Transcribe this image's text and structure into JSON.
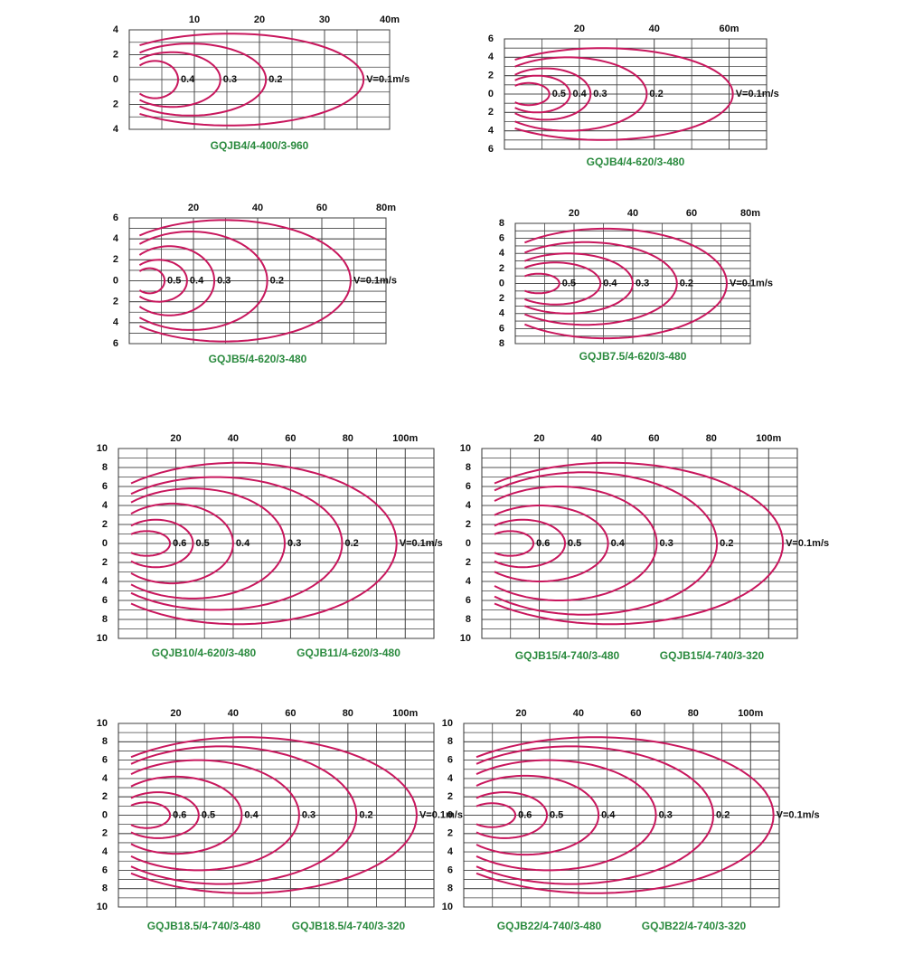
{
  "chart_data": [
    {
      "type": "contour",
      "captions": [
        "GQJB4/4-400/3-960"
      ],
      "xlim": [
        0,
        40
      ],
      "ylim": [
        -4,
        4
      ],
      "xticks": [
        10,
        20,
        30,
        {
          "value": 40,
          "label": "40m"
        }
      ],
      "yticks": [
        4,
        2,
        0,
        {
          "value": -2,
          "label": "2"
        },
        {
          "value": -4,
          "label": "4"
        }
      ],
      "color": "#c8175d",
      "series": [
        {
          "name": "0.4",
          "reach": 7.5,
          "half_width": 1.5
        },
        {
          "name": "0.3",
          "reach": 14,
          "half_width": 2.2
        },
        {
          "name": "0.2",
          "reach": 21,
          "half_width": 2.9
        },
        {
          "name": "V=0.1m/s",
          "reach": 36,
          "half_width": 3.7
        }
      ]
    },
    {
      "type": "contour",
      "captions": [
        "GQJB4/4-620/3-480"
      ],
      "xlim": [
        0,
        70
      ],
      "ylim": [
        -6,
        6
      ],
      "xticks": [
        20,
        40,
        {
          "value": 60,
          "label": "60m"
        }
      ],
      "yticks": [
        6,
        4,
        2,
        0,
        {
          "value": -2,
          "label": "2"
        },
        {
          "value": -4,
          "label": "4"
        },
        {
          "value": -6,
          "label": "6"
        }
      ],
      "color": "#c8175d",
      "series": [
        {
          "name": "0.5",
          "reach": 12,
          "half_width": 1.2
        },
        {
          "name": "0.4",
          "reach": 17.5,
          "half_width": 2
        },
        {
          "name": "0.3",
          "reach": 23,
          "half_width": 2.8
        },
        {
          "name": "0.2",
          "reach": 38,
          "half_width": 4
        },
        {
          "name": "V=0.1m/s",
          "reach": 61,
          "half_width": 5
        }
      ]
    },
    {
      "type": "contour",
      "captions": [
        "GQJB5/4-620/3-480"
      ],
      "xlim": [
        0,
        80
      ],
      "ylim": [
        -6,
        6
      ],
      "xticks": [
        20,
        40,
        60,
        {
          "value": 80,
          "label": "80m"
        }
      ],
      "yticks": [
        6,
        4,
        2,
        0,
        {
          "value": -2,
          "label": "2"
        },
        {
          "value": -4,
          "label": "4"
        },
        {
          "value": -6,
          "label": "6"
        }
      ],
      "color": "#c8175d",
      "series": [
        {
          "name": "0.5",
          "reach": 11,
          "half_width": 1.2
        },
        {
          "name": "0.4",
          "reach": 18,
          "half_width": 2
        },
        {
          "name": "0.3",
          "reach": 26.5,
          "half_width": 3.3
        },
        {
          "name": "0.2",
          "reach": 43,
          "half_width": 4.7
        },
        {
          "name": "V=0.1m/s",
          "reach": 69,
          "half_width": 5.8
        }
      ]
    },
    {
      "type": "contour",
      "captions": [
        "GQJB7.5/4-620/3-480"
      ],
      "xlim": [
        0,
        80
      ],
      "ylim": [
        -8,
        8
      ],
      "xticks": [
        20,
        40,
        60,
        {
          "value": 80,
          "label": "80m"
        }
      ],
      "yticks": [
        8,
        6,
        4,
        2,
        0,
        {
          "value": -2,
          "label": "2"
        },
        {
          "value": -4,
          "label": "4"
        },
        {
          "value": -6,
          "label": "6"
        },
        {
          "value": -8,
          "label": "8"
        }
      ],
      "color": "#c8175d",
      "series": [
        {
          "name": "0.5",
          "reach": 15,
          "half_width": 1.3
        },
        {
          "name": "0.4",
          "reach": 29,
          "half_width": 2.8
        },
        {
          "name": "0.3",
          "reach": 40,
          "half_width": 4
        },
        {
          "name": "0.2",
          "reach": 55,
          "half_width": 5.5
        },
        {
          "name": "V=0.1m/s",
          "reach": 72,
          "half_width": 7.3
        }
      ]
    },
    {
      "type": "contour",
      "captions": [
        "GQJB10/4-620/3-480",
        "GQJB11/4-620/3-480"
      ],
      "xlim": [
        0,
        110
      ],
      "ylim": [
        -10,
        10
      ],
      "xticks": [
        20,
        40,
        60,
        80,
        {
          "value": 100,
          "label": "100m"
        }
      ],
      "yticks": [
        10,
        8,
        6,
        4,
        2,
        0,
        {
          "value": -2,
          "label": "2"
        },
        {
          "value": -4,
          "label": "4"
        },
        {
          "value": -6,
          "label": "6"
        },
        {
          "value": -8,
          "label": "8"
        },
        {
          "value": -10,
          "label": "10"
        }
      ],
      "color": "#c8175d",
      "series": [
        {
          "name": "0.6",
          "reach": 18,
          "half_width": 1.3
        },
        {
          "name": "0.5",
          "reach": 26,
          "half_width": 2.5
        },
        {
          "name": "0.4",
          "reach": 40,
          "half_width": 4.2
        },
        {
          "name": "0.3",
          "reach": 58,
          "half_width": 5.8
        },
        {
          "name": "0.2",
          "reach": 78,
          "half_width": 7
        },
        {
          "name": "V=0.1m/s",
          "reach": 97,
          "half_width": 8.5
        }
      ]
    },
    {
      "type": "contour",
      "captions": [
        "GQJB15/4-740/3-480",
        "GQJB15/4-740/3-320"
      ],
      "xlim": [
        0,
        110
      ],
      "ylim": [
        -10,
        10
      ],
      "xticks": [
        20,
        40,
        60,
        80,
        {
          "value": 100,
          "label": "100m"
        }
      ],
      "yticks": [
        10,
        8,
        6,
        4,
        2,
        0,
        {
          "value": -2,
          "label": "2"
        },
        {
          "value": -4,
          "label": "4"
        },
        {
          "value": -6,
          "label": "6"
        },
        {
          "value": -8,
          "label": "8"
        },
        {
          "value": -10,
          "label": "10"
        }
      ],
      "color": "#c8175d",
      "series": [
        {
          "name": "0.6",
          "reach": 18,
          "half_width": 1.3
        },
        {
          "name": "0.5",
          "reach": 29,
          "half_width": 2.5
        },
        {
          "name": "0.4",
          "reach": 44,
          "half_width": 4
        },
        {
          "name": "0.3",
          "reach": 61,
          "half_width": 6
        },
        {
          "name": "0.2",
          "reach": 82,
          "half_width": 7.5
        },
        {
          "name": "V=0.1m/s",
          "reach": 105,
          "half_width": 8.5
        }
      ]
    },
    {
      "type": "contour",
      "captions": [
        "GQJB18.5/4-740/3-480",
        "GQJB18.5/4-740/3-320"
      ],
      "xlim": [
        0,
        110
      ],
      "ylim": [
        -10,
        10
      ],
      "xticks": [
        20,
        40,
        60,
        80,
        {
          "value": 100,
          "label": "100m"
        }
      ],
      "yticks": [
        10,
        8,
        6,
        4,
        2,
        0,
        {
          "value": -2,
          "label": "2"
        },
        {
          "value": -4,
          "label": "4"
        },
        {
          "value": -6,
          "label": "6"
        },
        {
          "value": -8,
          "label": "8"
        },
        {
          "value": -10,
          "label": "10"
        }
      ],
      "color": "#c8175d",
      "series": [
        {
          "name": "0.6",
          "reach": 18,
          "half_width": 1.4
        },
        {
          "name": "0.5",
          "reach": 28,
          "half_width": 2.5
        },
        {
          "name": "0.4",
          "reach": 43,
          "half_width": 4.2
        },
        {
          "name": "0.3",
          "reach": 63,
          "half_width": 6
        },
        {
          "name": "0.2",
          "reach": 83,
          "half_width": 7.5
        },
        {
          "name": "V=0.1m/s",
          "reach": 104,
          "half_width": 8.5
        }
      ]
    },
    {
      "type": "contour",
      "captions": [
        "GQJB22/4-740/3-480",
        "GQJB22/4-740/3-320"
      ],
      "xlim": [
        0,
        110
      ],
      "ylim": [
        -10,
        10
      ],
      "xticks": [
        20,
        40,
        60,
        80,
        {
          "value": 100,
          "label": "100m"
        }
      ],
      "yticks": [
        10,
        8,
        6,
        4,
        2,
        0,
        {
          "value": -2,
          "label": "2"
        },
        {
          "value": -4,
          "label": "4"
        },
        {
          "value": -6,
          "label": "6"
        },
        {
          "value": -8,
          "label": "8"
        },
        {
          "value": -10,
          "label": "10"
        }
      ],
      "color": "#c8175d",
      "series": [
        {
          "name": "0.6",
          "reach": 18,
          "half_width": 1.3
        },
        {
          "name": "0.5",
          "reach": 29,
          "half_width": 2.5
        },
        {
          "name": "0.4",
          "reach": 47,
          "half_width": 4.3
        },
        {
          "name": "0.3",
          "reach": 67,
          "half_width": 6
        },
        {
          "name": "0.2",
          "reach": 87,
          "half_width": 7.5
        },
        {
          "name": "V=0.1m/s",
          "reach": 108,
          "half_width": 8.5
        }
      ]
    }
  ]
}
